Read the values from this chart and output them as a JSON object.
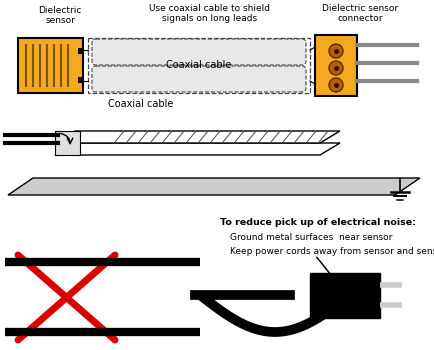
{
  "bg_color": "#ffffff",
  "orange_color": "#f5a820",
  "red_color": "#dd0000",
  "gray_color": "#aaaaaa",
  "dark_gray": "#444444",
  "light_gray": "#cccccc",
  "black": "#000000",
  "labels": {
    "sensor_label": "Dielectric\nsensor",
    "cable_label": "Use coaxial cable to shield\nsignals on long leads",
    "connector_label": "Dielectric sensor\nconnector",
    "coaxial_mid": "Coaxial cable",
    "coaxial_bot": "Coaxial cable",
    "noise_text": "To reduce pick up of electrical noise:",
    "ground_text": "Ground metal surfaces  near sensor",
    "keep_text": "Keep power cords away from sensor and sensor leads"
  }
}
